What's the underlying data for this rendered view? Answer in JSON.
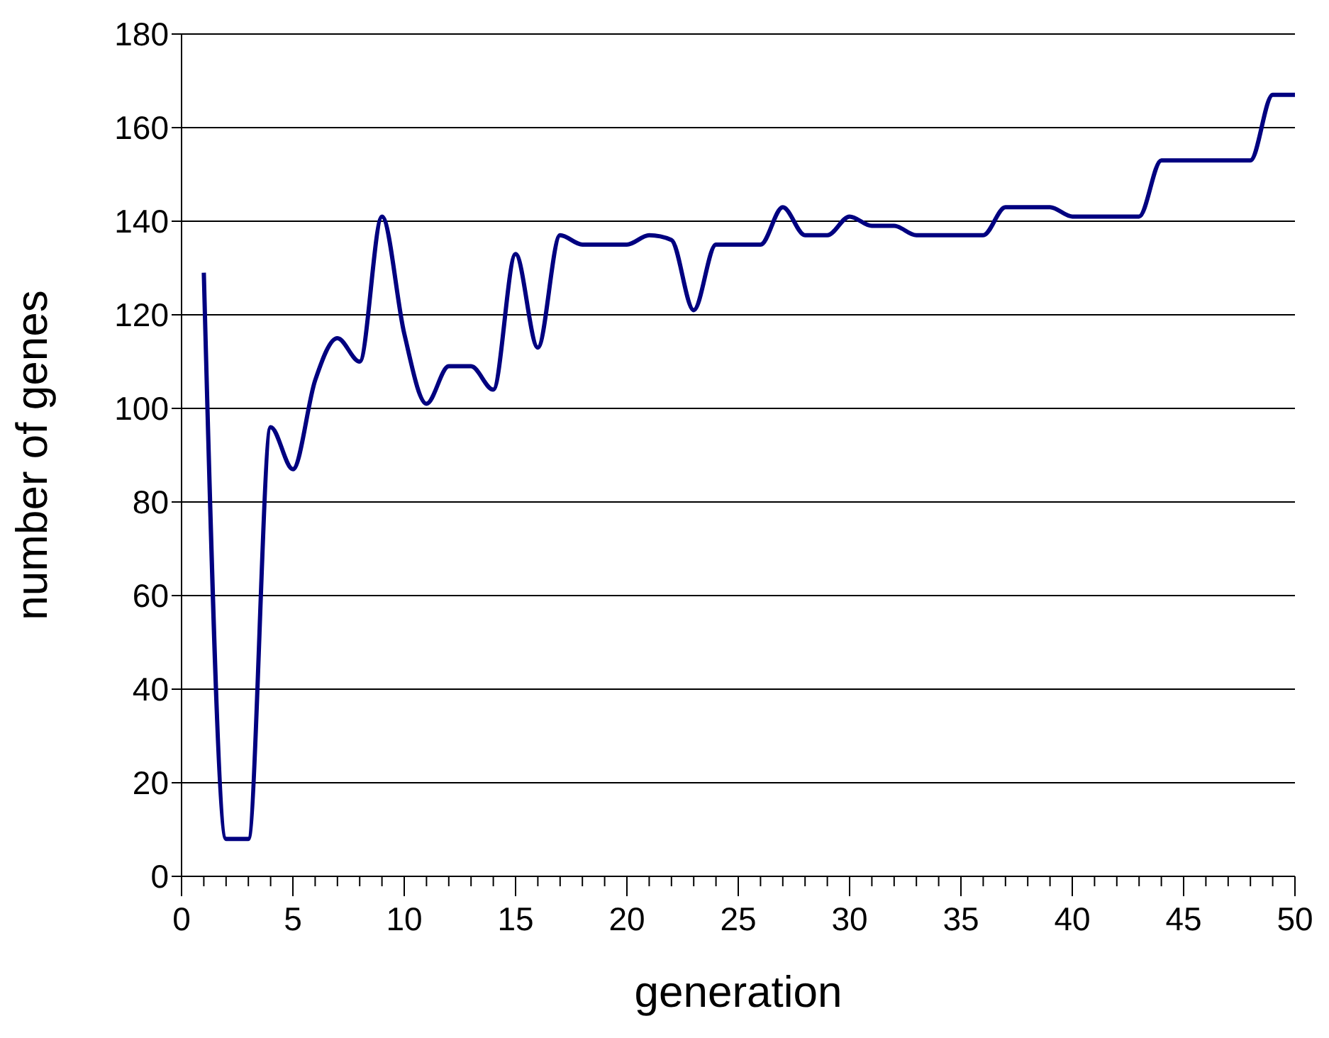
{
  "chart_data": {
    "type": "line",
    "xlabel": "generation",
    "ylabel": "number of genes",
    "x": [
      1,
      2,
      3,
      4,
      5,
      6,
      7,
      8,
      9,
      10,
      11,
      12,
      13,
      14,
      15,
      16,
      17,
      18,
      19,
      20,
      21,
      22,
      23,
      24,
      25,
      26,
      27,
      28,
      29,
      30,
      31,
      32,
      33,
      34,
      35,
      36,
      37,
      38,
      39,
      40,
      41,
      42,
      43,
      44,
      45,
      46,
      47,
      48,
      49,
      50
    ],
    "series": [
      {
        "color": "#000080",
        "values": [
          129,
          8,
          8,
          96,
          87,
          106,
          115,
          110,
          141,
          116,
          101,
          109,
          109,
          104,
          133,
          113,
          137,
          135,
          135,
          135,
          137,
          136,
          121,
          135,
          135,
          135,
          143,
          137,
          137,
          141,
          139,
          139,
          137,
          137,
          137,
          137,
          143,
          143,
          143,
          141,
          141,
          141,
          141,
          153,
          153,
          153,
          153,
          153,
          167,
          167
        ]
      }
    ],
    "xlim": [
      0,
      50
    ],
    "xticks": [
      0,
      {
        "value": 1,
        "label": null
      },
      {
        "value": 2,
        "label": null
      },
      {
        "value": 3,
        "label": null
      },
      {
        "value": 4,
        "label": null
      },
      5,
      {
        "value": 6,
        "label": null
      },
      {
        "value": 7,
        "label": null
      },
      {
        "value": 8,
        "label": null
      },
      {
        "value": 9,
        "label": null
      },
      10,
      {
        "value": 11,
        "label": null
      },
      {
        "value": 12,
        "label": null
      },
      {
        "value": 13,
        "label": null
      },
      {
        "value": 14,
        "label": null
      },
      15,
      {
        "value": 16,
        "label": null
      },
      {
        "value": 17,
        "label": null
      },
      {
        "value": 18,
        "label": null
      },
      {
        "value": 19,
        "label": null
      },
      20,
      {
        "value": 21,
        "label": null
      },
      {
        "value": 22,
        "label": null
      },
      {
        "value": 23,
        "label": null
      },
      {
        "value": 24,
        "label": null
      },
      25,
      {
        "value": 26,
        "label": null
      },
      {
        "value": 27,
        "label": null
      },
      {
        "value": 28,
        "label": null
      },
      {
        "value": 29,
        "label": null
      },
      30,
      {
        "value": 31,
        "label": null
      },
      {
        "value": 32,
        "label": null
      },
      {
        "value": 33,
        "label": null
      },
      {
        "value": 34,
        "label": null
      },
      35,
      {
        "value": 36,
        "label": null
      },
      {
        "value": 37,
        "label": null
      },
      {
        "value": 38,
        "label": null
      },
      {
        "value": 39,
        "label": null
      },
      40,
      {
        "value": 41,
        "label": null
      },
      {
        "value": 42,
        "label": null
      },
      {
        "value": 43,
        "label": null
      },
      {
        "value": 44,
        "label": null
      },
      45,
      {
        "value": 46,
        "label": null
      },
      {
        "value": 47,
        "label": null
      },
      {
        "value": 48,
        "label": null
      },
      {
        "value": 49,
        "label": null
      },
      50
    ],
    "ylim": [
      0,
      180
    ],
    "yticks": [
      0,
      20,
      40,
      60,
      80,
      100,
      120,
      140,
      160,
      180
    ],
    "grid": "y",
    "marker": "none",
    "line_style": "solid",
    "legend": false
  }
}
